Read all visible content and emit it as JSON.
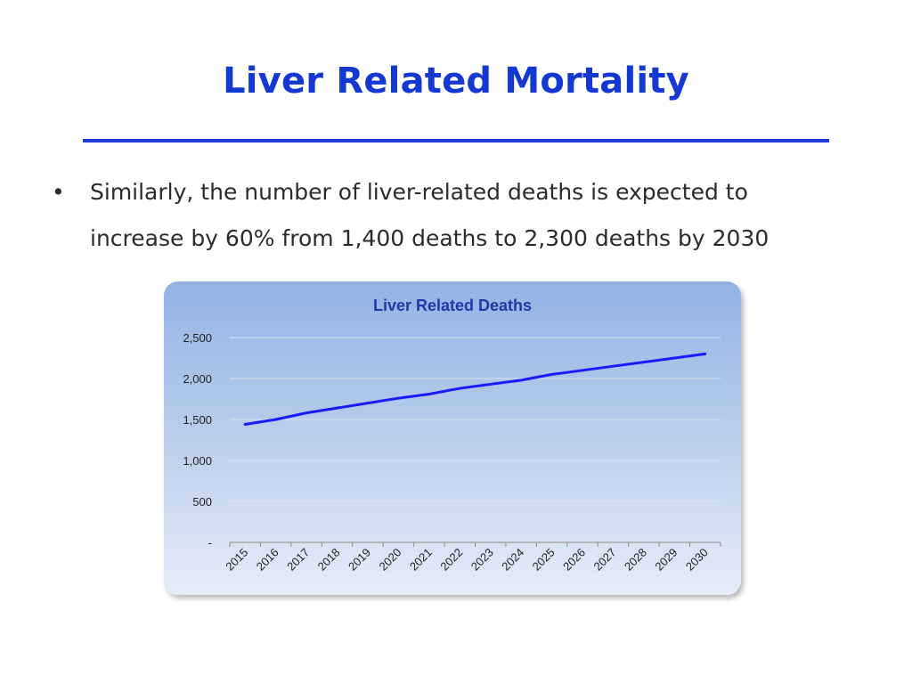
{
  "slide": {
    "title": "Liver Related Mortality",
    "bullet_symbol": "•",
    "bullet_line1": "Similarly, the number of liver-related deaths is expected to",
    "bullet_line2": "increase by 60% from 1,400 deaths to 2,300 deaths by 2030"
  },
  "colors": {
    "title": "#1438d2",
    "rule": "#1f3ad6",
    "line": "#1a1aff",
    "chart_title": "#1f3aa8"
  },
  "chart_data": {
    "type": "line",
    "title": "Liver Related Deaths",
    "xlabel": "",
    "ylabel": "",
    "categories": [
      "2015",
      "2016",
      "2017",
      "2018",
      "2019",
      "2020",
      "2021",
      "2022",
      "2023",
      "2024",
      "2025",
      "2026",
      "2027",
      "2028",
      "2029",
      "2030"
    ],
    "series": [
      {
        "values": [
          1440,
          1500,
          1580,
          1640,
          1700,
          1760,
          1810,
          1880,
          1930,
          1980,
          2050,
          2100,
          2150,
          2200,
          2250,
          2300
        ]
      }
    ],
    "yticks": [
      0,
      500,
      1000,
      1500,
      2000,
      2500
    ],
    "ytick_labels": [
      "-",
      "500",
      "1,000",
      "1,500",
      "2,000",
      "2,500"
    ],
    "ylim": [
      0,
      2500
    ],
    "grid": true,
    "legend": "none"
  }
}
